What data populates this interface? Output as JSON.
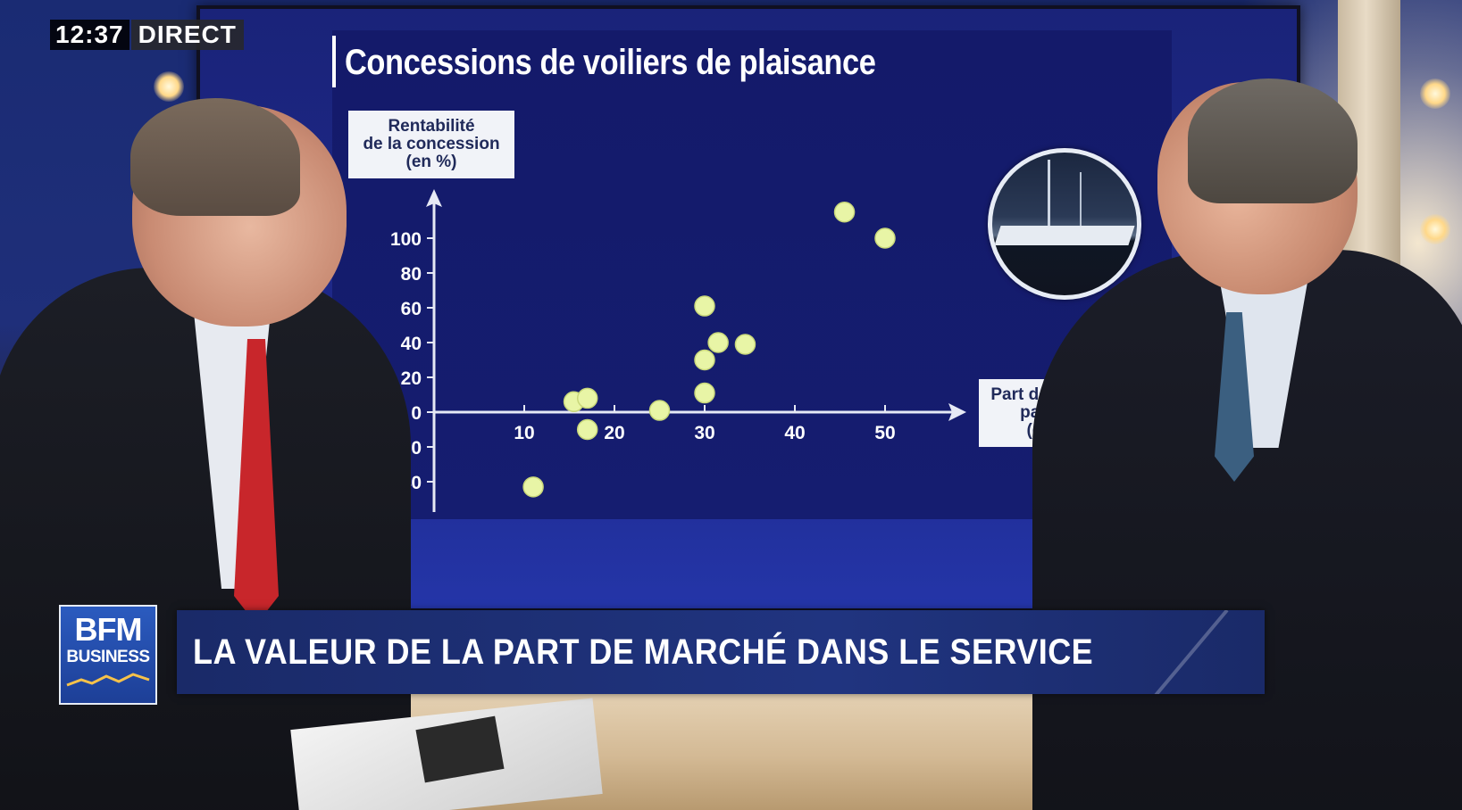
{
  "overlay": {
    "time": "12:37",
    "live_label": "DIRECT",
    "channel_logo_top": "BFM",
    "channel_logo_bottom": "BUSINESS",
    "headline": "LA VALEUR DE LA PART DE MARCHÉ DANS LE SERVICE"
  },
  "colors": {
    "chart_background": "#151d70",
    "point_fill": "#e8f5a6",
    "lower_third": "#1f3080",
    "logo_blue": "#2b5bbf"
  },
  "chart_data": {
    "type": "scatter",
    "title": "Concessions de voiliers de plaisance",
    "ylabel_lines": [
      "Rentabilité",
      "de la concession",
      "(en %)"
    ],
    "xlabel_lines": [
      "Part de marché",
      "par port",
      "(en %)"
    ],
    "x_ticks": [
      10,
      20,
      30,
      40,
      50
    ],
    "y_ticks": [
      100,
      80,
      60,
      40,
      20,
      0,
      -20,
      -40
    ],
    "xlim": [
      0,
      55
    ],
    "ylim": [
      -50,
      125
    ],
    "grid": false,
    "legend": "none",
    "points": [
      {
        "x": 11,
        "y": -43
      },
      {
        "x": 15.5,
        "y": 6
      },
      {
        "x": 17,
        "y": 8
      },
      {
        "x": 17,
        "y": -10
      },
      {
        "x": 25,
        "y": 1
      },
      {
        "x": 30,
        "y": 61
      },
      {
        "x": 30,
        "y": 30
      },
      {
        "x": 30,
        "y": 11
      },
      {
        "x": 31.5,
        "y": 40
      },
      {
        "x": 34.5,
        "y": 39
      },
      {
        "x": 45.5,
        "y": 115
      },
      {
        "x": 50,
        "y": 100
      }
    ]
  }
}
